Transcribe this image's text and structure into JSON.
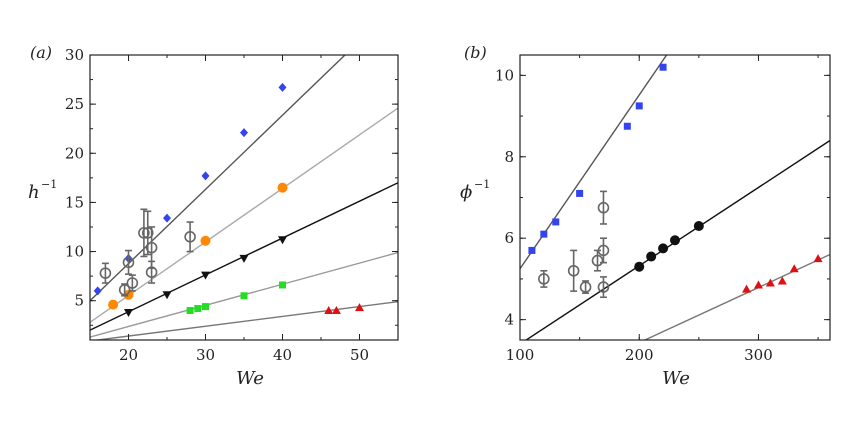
{
  "chart_data": [
    {
      "id": "a",
      "type": "scatter",
      "panel_label": "(a)",
      "xlabel": "We",
      "ylabel": "h",
      "ylabel_sup": "−1",
      "xlim": [
        15,
        55
      ],
      "ylim": [
        1,
        30
      ],
      "xticks": [
        20,
        30,
        40,
        50
      ],
      "yticks": [
        5,
        10,
        15,
        20,
        25,
        30
      ],
      "fit_lines": [
        {
          "name": "blue fit",
          "color": "#555555",
          "x": [
            15,
            55
          ],
          "y": [
            5.0,
            35.2
          ]
        },
        {
          "name": "orange fit",
          "color": "#aaaaaa",
          "x": [
            15,
            55
          ],
          "y": [
            2.8,
            24.6
          ]
        },
        {
          "name": "black fit",
          "color": "#111111",
          "x": [
            15,
            55
          ],
          "y": [
            2.0,
            17.0
          ]
        },
        {
          "name": "green fit",
          "color": "#999999",
          "x": [
            15,
            55
          ],
          "y": [
            1.3,
            9.9
          ]
        },
        {
          "name": "red fit",
          "color": "#777777",
          "x": [
            15,
            55
          ],
          "y": [
            0.9,
            4.9
          ]
        }
      ],
      "series": [
        {
          "name": "blue",
          "marker": "diamond",
          "color": "#3344ee",
          "x": [
            16,
            20,
            25,
            30,
            35,
            40
          ],
          "y": [
            6.0,
            9.3,
            13.4,
            17.7,
            22.1,
            26.7
          ]
        },
        {
          "name": "orange",
          "marker": "circle",
          "color": "#ff8800",
          "x": [
            18,
            20,
            30,
            40
          ],
          "y": [
            4.6,
            5.6,
            11.1,
            16.5
          ]
        },
        {
          "name": "black",
          "marker": "triangle-down",
          "color": "#111111",
          "x": [
            20,
            25,
            30,
            35,
            40
          ],
          "y": [
            3.8,
            5.6,
            7.6,
            9.3,
            11.2
          ]
        },
        {
          "name": "green",
          "marker": "square",
          "color": "#22dd22",
          "x": [
            28,
            29,
            30,
            35,
            40
          ],
          "y": [
            4.0,
            4.2,
            4.4,
            5.5,
            6.6
          ]
        },
        {
          "name": "red",
          "marker": "triangle-up",
          "color": "#dd1111",
          "x": [
            46,
            47,
            50
          ],
          "y": [
            4.0,
            4.0,
            4.3
          ]
        },
        {
          "name": "open circles",
          "marker": "open-circle",
          "color": "#666666",
          "x": [
            17,
            19.5,
            20,
            20.5,
            22,
            22.5,
            23,
            23,
            28
          ],
          "y": [
            7.8,
            6.1,
            8.9,
            6.8,
            11.9,
            11.9,
            10.4,
            7.9,
            11.5
          ],
          "err": [
            1.0,
            0.6,
            1.2,
            0.8,
            2.4,
            2.2,
            2.1,
            1.1,
            1.5
          ]
        }
      ]
    },
    {
      "id": "b",
      "type": "scatter",
      "panel_label": "(b)",
      "xlabel": "We",
      "ylabel": "ϕ",
      "ylabel_sup": "−1",
      "xlim": [
        100,
        360
      ],
      "ylim": [
        3.5,
        10.5
      ],
      "xticks": [
        100,
        200,
        300
      ],
      "yticks": [
        4,
        6,
        8,
        10
      ],
      "fit_lines": [
        {
          "name": "blue fit",
          "color": "#555555",
          "x": [
            100,
            230
          ],
          "y": [
            5.25,
            10.8
          ]
        },
        {
          "name": "black fit",
          "color": "#111111",
          "x": [
            100,
            360
          ],
          "y": [
            3.4,
            8.4
          ]
        },
        {
          "name": "red fit",
          "color": "#777777",
          "x": [
            190,
            360
          ],
          "y": [
            3.3,
            5.6
          ]
        }
      ],
      "series": [
        {
          "name": "blue",
          "marker": "square",
          "color": "#3344ee",
          "x": [
            110,
            120,
            130,
            150,
            190,
            200,
            220
          ],
          "y": [
            5.7,
            6.1,
            6.4,
            7.1,
            8.75,
            9.25,
            10.2
          ]
        },
        {
          "name": "black",
          "marker": "circle",
          "color": "#111111",
          "x": [
            200,
            210,
            220,
            230,
            250
          ],
          "y": [
            5.3,
            5.55,
            5.75,
            5.95,
            6.3
          ]
        },
        {
          "name": "red",
          "marker": "triangle-up",
          "color": "#dd1111",
          "x": [
            290,
            300,
            310,
            320,
            330,
            350
          ],
          "y": [
            4.75,
            4.85,
            4.9,
            4.95,
            5.25,
            5.5
          ]
        },
        {
          "name": "open circles",
          "marker": "open-circle",
          "color": "#666666",
          "x": [
            120,
            145,
            155,
            165,
            170,
            170,
            170
          ],
          "y": [
            5.0,
            5.2,
            4.8,
            5.45,
            5.7,
            4.8,
            6.75
          ],
          "err": [
            0.2,
            0.5,
            0.15,
            0.25,
            0.3,
            0.25,
            0.4
          ]
        }
      ]
    }
  ]
}
